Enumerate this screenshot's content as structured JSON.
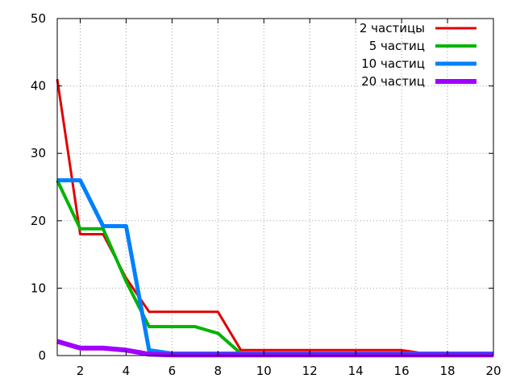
{
  "chart_data": {
    "type": "line",
    "title": "",
    "xlabel": "",
    "ylabel": "",
    "xlim": [
      1,
      20
    ],
    "ylim": [
      0,
      50
    ],
    "xticks": [
      2,
      4,
      6,
      8,
      10,
      12,
      14,
      16,
      18,
      20
    ],
    "yticks": [
      0,
      10,
      20,
      30,
      40,
      50
    ],
    "grid": true,
    "legend_position": "top-right",
    "series": [
      {
        "name": "2 частицы",
        "color": "#e00000",
        "x": [
          1,
          2,
          3,
          4,
          5,
          6,
          7,
          8,
          9,
          10,
          11,
          12,
          13,
          14,
          15,
          16,
          17,
          18,
          19,
          20
        ],
        "y": [
          41,
          18,
          18,
          11.5,
          6.5,
          6.5,
          6.5,
          6.5,
          0.8,
          0.8,
          0.8,
          0.8,
          0.8,
          0.8,
          0.8,
          0.8,
          0.3,
          0.3,
          0.3,
          0.3
        ]
      },
      {
        "name": "5 частиц",
        "color": "#00b400",
        "x": [
          1,
          2,
          3,
          4,
          5,
          6,
          7,
          8,
          9,
          10,
          11,
          12,
          13,
          14,
          15,
          16,
          17,
          18,
          19,
          20
        ],
        "y": [
          26,
          18.8,
          18.8,
          11,
          4.3,
          4.3,
          4.3,
          3.3,
          0.3,
          0.3,
          0.3,
          0.3,
          0.3,
          0.3,
          0.3,
          0.3,
          0.3,
          0.3,
          0.3,
          0.3
        ]
      },
      {
        "name": "10 частиц",
        "color": "#0080ff",
        "x": [
          1,
          2,
          3,
          4,
          5,
          6,
          7,
          8,
          9,
          10,
          11,
          12,
          13,
          14,
          15,
          16,
          17,
          18,
          19,
          20
        ],
        "y": [
          26,
          26,
          19.2,
          19.2,
          0.8,
          0.3,
          0.3,
          0.3,
          0.3,
          0.3,
          0.3,
          0.3,
          0.3,
          0.3,
          0.3,
          0.3,
          0.3,
          0.3,
          0.3,
          0.3
        ]
      },
      {
        "name": "20 частиц",
        "color": "#a000ff",
        "x": [
          1,
          2,
          3,
          4,
          5,
          6,
          7,
          8,
          9,
          10,
          11,
          12,
          13,
          14,
          15,
          16,
          17,
          18,
          19,
          20
        ],
        "y": [
          2.1,
          1.1,
          1.1,
          0.8,
          0.2,
          0.1,
          0.1,
          0.1,
          0.1,
          0.1,
          0.1,
          0.1,
          0.1,
          0.1,
          0.1,
          0.1,
          0.1,
          0.1,
          0.1,
          0.1
        ]
      }
    ]
  }
}
